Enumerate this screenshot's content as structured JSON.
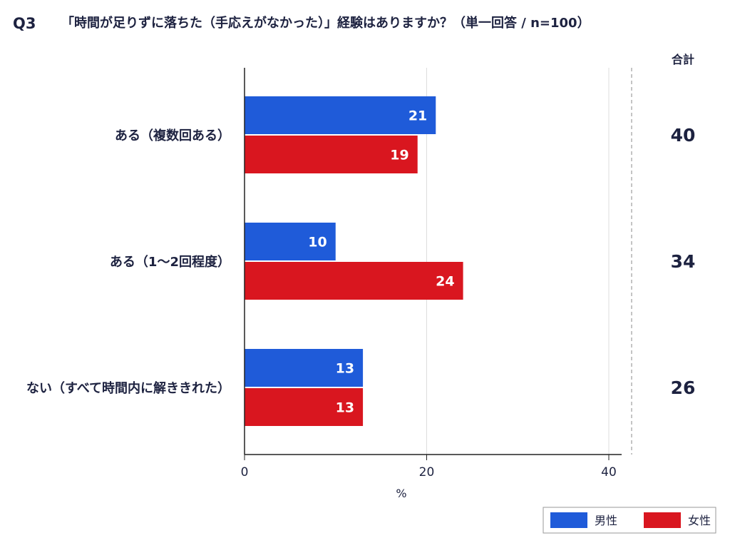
{
  "header": {
    "question_no": "Q3",
    "question_text": "「時間が足りずに落ちた（手応えがなかった）」経験はありますか？（単一回答 / n=100）"
  },
  "totals_header": "合計",
  "chart_data": {
    "type": "bar",
    "orientation": "horizontal",
    "categories": [
      "ある（複数回ある）",
      "ある（1〜2回程度）",
      "ない（すべて時間内に解ききれた）"
    ],
    "series": [
      {
        "name": "男性",
        "color": "#1f5bd9",
        "values": [
          21,
          10,
          13
        ]
      },
      {
        "name": "女性",
        "color": "#d9161f",
        "values": [
          19,
          24,
          13
        ]
      }
    ],
    "totals": [
      40,
      34,
      26
    ],
    "xlabel": "%",
    "xlim": [
      0,
      40
    ],
    "xticks": [
      0,
      20,
      40
    ],
    "grid": true,
    "data_labels": true,
    "legend_position": "bottom-right"
  }
}
